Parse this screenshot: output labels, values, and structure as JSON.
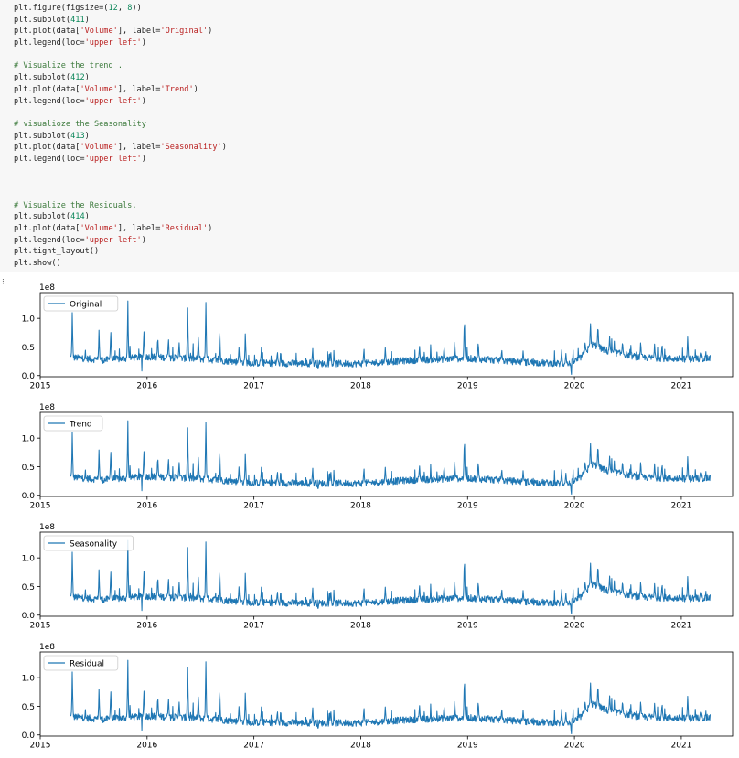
{
  "code_cell": {
    "lines": [
      [
        {
          "t": "plt.figure(figsize=(",
          "c": ""
        },
        {
          "t": "12",
          "c": "num"
        },
        {
          "t": ", ",
          "c": ""
        },
        {
          "t": "8",
          "c": "num"
        },
        {
          "t": "))",
          "c": ""
        }
      ],
      [
        {
          "t": "plt.subplot(",
          "c": ""
        },
        {
          "t": "411",
          "c": "num"
        },
        {
          "t": ")",
          "c": ""
        }
      ],
      [
        {
          "t": "plt.plot(data[",
          "c": ""
        },
        {
          "t": "'Volume'",
          "c": "str"
        },
        {
          "t": "], label=",
          "c": ""
        },
        {
          "t": "'Original'",
          "c": "str"
        },
        {
          "t": ")",
          "c": ""
        }
      ],
      [
        {
          "t": "plt.legend(loc=",
          "c": ""
        },
        {
          "t": "'upper left'",
          "c": "str"
        },
        {
          "t": ")",
          "c": ""
        }
      ],
      [],
      [
        {
          "t": "# Visualize the trend .",
          "c": "cmt"
        }
      ],
      [
        {
          "t": "plt.subplot(",
          "c": ""
        },
        {
          "t": "412",
          "c": "num"
        },
        {
          "t": ")",
          "c": ""
        }
      ],
      [
        {
          "t": "plt.plot(data[",
          "c": ""
        },
        {
          "t": "'Volume'",
          "c": "str"
        },
        {
          "t": "], label=",
          "c": ""
        },
        {
          "t": "'Trend'",
          "c": "str"
        },
        {
          "t": ")",
          "c": ""
        }
      ],
      [
        {
          "t": "plt.legend(loc=",
          "c": ""
        },
        {
          "t": "'upper left'",
          "c": "str"
        },
        {
          "t": ")",
          "c": ""
        }
      ],
      [],
      [
        {
          "t": "# visualioze the Seasonality",
          "c": "cmt"
        }
      ],
      [
        {
          "t": "plt.subplot(",
          "c": ""
        },
        {
          "t": "413",
          "c": "num"
        },
        {
          "t": ")",
          "c": ""
        }
      ],
      [
        {
          "t": "plt.plot(data[",
          "c": ""
        },
        {
          "t": "'Volume'",
          "c": "str"
        },
        {
          "t": "], label=",
          "c": ""
        },
        {
          "t": "'Seasonality'",
          "c": "str"
        },
        {
          "t": ")",
          "c": ""
        }
      ],
      [
        {
          "t": "plt.legend(loc=",
          "c": ""
        },
        {
          "t": "'upper left'",
          "c": "str"
        },
        {
          "t": ")",
          "c": ""
        }
      ],
      [],
      [],
      [],
      [
        {
          "t": "# Visualize the Residuals.",
          "c": "cmt"
        }
      ],
      [
        {
          "t": "plt.subplot(",
          "c": ""
        },
        {
          "t": "414",
          "c": "num"
        },
        {
          "t": ")",
          "c": ""
        }
      ],
      [
        {
          "t": "plt.plot(data[",
          "c": ""
        },
        {
          "t": "'Volume'",
          "c": "str"
        },
        {
          "t": "], label=",
          "c": ""
        },
        {
          "t": "'Residual'",
          "c": "str"
        },
        {
          "t": ")",
          "c": ""
        }
      ],
      [
        {
          "t": "plt.legend(loc=",
          "c": ""
        },
        {
          "t": "'upper left'",
          "c": "str"
        },
        {
          "t": ")",
          "c": ""
        }
      ],
      [
        {
          "t": "plt.tight_layout()",
          "c": ""
        }
      ],
      [
        {
          "t": "plt.show()",
          "c": ""
        }
      ]
    ]
  },
  "output_marker": "⁝",
  "colors": {
    "line": "#1f77b4",
    "axis": "#000000",
    "code_bg": "#f7f7f7"
  },
  "chart_data": [
    {
      "type": "line",
      "legend_label": "Original",
      "legend_loc": "upper-left",
      "scale_label": "1e8",
      "yticks": [
        "0.0",
        "0.5",
        "1.0"
      ],
      "ytick_values": [
        0.0,
        0.5,
        1.0
      ],
      "ylim": [
        -0.02,
        1.45
      ],
      "xlim": [
        2015.0,
        2021.48
      ],
      "xticks": [
        "2015",
        "2016",
        "2017",
        "2018",
        "2019",
        "2020",
        "2021"
      ]
    },
    {
      "type": "line",
      "legend_label": "Trend",
      "legend_loc": "upper-left",
      "scale_label": "1e8",
      "yticks": [
        "0.0",
        "0.5",
        "1.0"
      ],
      "ytick_values": [
        0.0,
        0.5,
        1.0
      ],
      "ylim": [
        -0.02,
        1.45
      ],
      "xlim": [
        2015.0,
        2021.48
      ],
      "xticks": [
        "2015",
        "2016",
        "2017",
        "2018",
        "2019",
        "2020",
        "2021"
      ]
    },
    {
      "type": "line",
      "legend_label": "Seasonality",
      "legend_loc": "upper-left",
      "scale_label": "1e8",
      "yticks": [
        "0.0",
        "0.5",
        "1.0"
      ],
      "ytick_values": [
        0.0,
        0.5,
        1.0
      ],
      "ylim": [
        -0.02,
        1.45
      ],
      "xlim": [
        2015.0,
        2021.48
      ],
      "xticks": [
        "2015",
        "2016",
        "2017",
        "2018",
        "2019",
        "2020",
        "2021"
      ]
    },
    {
      "type": "line",
      "legend_label": "Residual",
      "legend_loc": "upper-left",
      "scale_label": "1e8",
      "yticks": [
        "0.0",
        "0.5",
        "1.0"
      ],
      "ytick_values": [
        0.0,
        0.5,
        1.0
      ],
      "ylim": [
        -0.02,
        1.45
      ],
      "xlim": [
        2015.0,
        2021.48
      ],
      "xticks": [
        "2015",
        "2016",
        "2017",
        "2018",
        "2019",
        "2020",
        "2021"
      ]
    }
  ],
  "series": {
    "name": "Volume",
    "x_start": 2015.28,
    "x_end": 2021.27,
    "n": 1510,
    "baseline_x": [
      2015.28,
      2015.6,
      2016.0,
      2016.5,
      2017.0,
      2017.5,
      2018.0,
      2018.5,
      2019.0,
      2019.5,
      2019.95,
      2020.05,
      2020.17,
      2020.3,
      2020.6,
      2021.0,
      2021.27
    ],
    "baseline_y": [
      0.32,
      0.27,
      0.33,
      0.29,
      0.22,
      0.21,
      0.21,
      0.27,
      0.3,
      0.24,
      0.2,
      0.3,
      0.55,
      0.43,
      0.32,
      0.29,
      0.3
    ],
    "spikes": [
      [
        2015.3,
        1.12
      ],
      [
        2015.55,
        0.8
      ],
      [
        2015.66,
        0.85
      ],
      [
        2015.82,
        1.33
      ],
      [
        2015.97,
        0.82
      ],
      [
        2016.1,
        0.72
      ],
      [
        2016.2,
        0.68
      ],
      [
        2016.3,
        0.58
      ],
      [
        2016.38,
        1.25
      ],
      [
        2016.48,
        0.75
      ],
      [
        2016.55,
        1.32
      ],
      [
        2016.68,
        0.85
      ],
      [
        2016.86,
        0.5
      ],
      [
        2016.92,
        0.78
      ],
      [
        2017.07,
        0.5
      ],
      [
        2017.22,
        0.44
      ],
      [
        2017.55,
        0.5
      ],
      [
        2017.72,
        0.45
      ],
      [
        2018.03,
        0.5
      ],
      [
        2018.23,
        0.52
      ],
      [
        2018.55,
        0.55
      ],
      [
        2018.78,
        0.52
      ],
      [
        2018.88,
        0.6
      ],
      [
        2018.97,
        1.09
      ],
      [
        2019.1,
        0.62
      ],
      [
        2019.32,
        0.47
      ],
      [
        2019.52,
        0.45
      ],
      [
        2019.88,
        0.48
      ],
      [
        2019.92,
        0.4
      ],
      [
        2020.1,
        0.6
      ],
      [
        2020.15,
        0.95
      ],
      [
        2020.22,
        0.93
      ],
      [
        2020.33,
        0.72
      ],
      [
        2020.45,
        0.62
      ],
      [
        2020.62,
        0.62
      ],
      [
        2020.75,
        0.55
      ],
      [
        2020.82,
        0.58
      ],
      [
        2021.06,
        0.7
      ],
      [
        2021.18,
        0.42
      ]
    ],
    "dips": [
      [
        2015.95,
        0.08
      ],
      [
        2019.97,
        0.02
      ],
      [
        2017.6,
        0.12
      ]
    ]
  }
}
